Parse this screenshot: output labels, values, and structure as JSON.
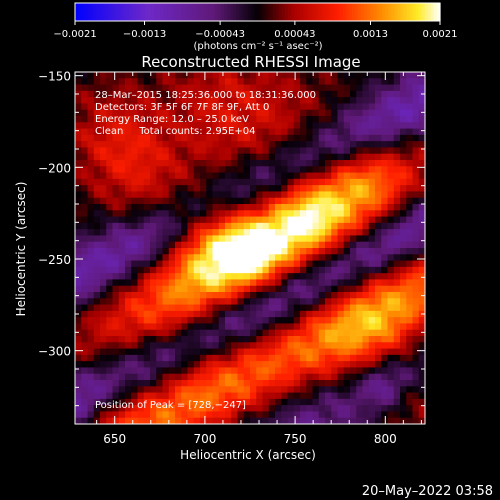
{
  "chart_data": {
    "type": "heatmap",
    "title": "Reconstructed RHESSI Image",
    "xlabel": "Heliocentric X (arcsec)",
    "ylabel": "Heliocentric Y (arcsec)",
    "xlim": [
      628,
      822
    ],
    "ylim": [
      -340,
      -148
    ],
    "x_ticks": [
      650,
      700,
      750,
      800
    ],
    "x_tick_labels": [
      "650",
      "700",
      "750",
      "800"
    ],
    "y_ticks": [
      -150,
      -200,
      -250,
      -300
    ],
    "y_tick_labels": [
      "−150",
      "−200",
      "−250",
      "−300"
    ],
    "colorbar": {
      "min": -0.0021,
      "max": 0.0021,
      "ticks": [
        -0.0021,
        -0.0013,
        -0.00043,
        0.00043,
        0.0013,
        0.0021
      ],
      "tick_labels": [
        "−0.0021",
        "−0.0013",
        "−0.00043",
        "0.00043",
        "0.0013",
        "0.0021"
      ],
      "units_label": "(photons cm⁻² s⁻¹ asec⁻²)",
      "colormap": "rainbow-blue-purple-red-yellow-white"
    },
    "annotations": [
      "28–Mar–2015 18:25:36.000 to 18:31:36.000",
      "Detectors: 3F 5F 6F 7F 8F 9F, Att 0",
      "Energy Range: 12.0 – 25.0 keV",
      "Clean     Total counts: 2.95E+04"
    ],
    "peak_label": "Position of Peak = [728,−247]",
    "peak": {
      "x": 728,
      "y": -247
    },
    "grid": false,
    "description_of_structure": "diagonal bright ridge from lower-left to upper-right through the peak; secondary band in lower-left; upper-right lobe; purple negative troughs between"
  },
  "footer": {
    "timestamp": "20–May–2022 03:58"
  }
}
